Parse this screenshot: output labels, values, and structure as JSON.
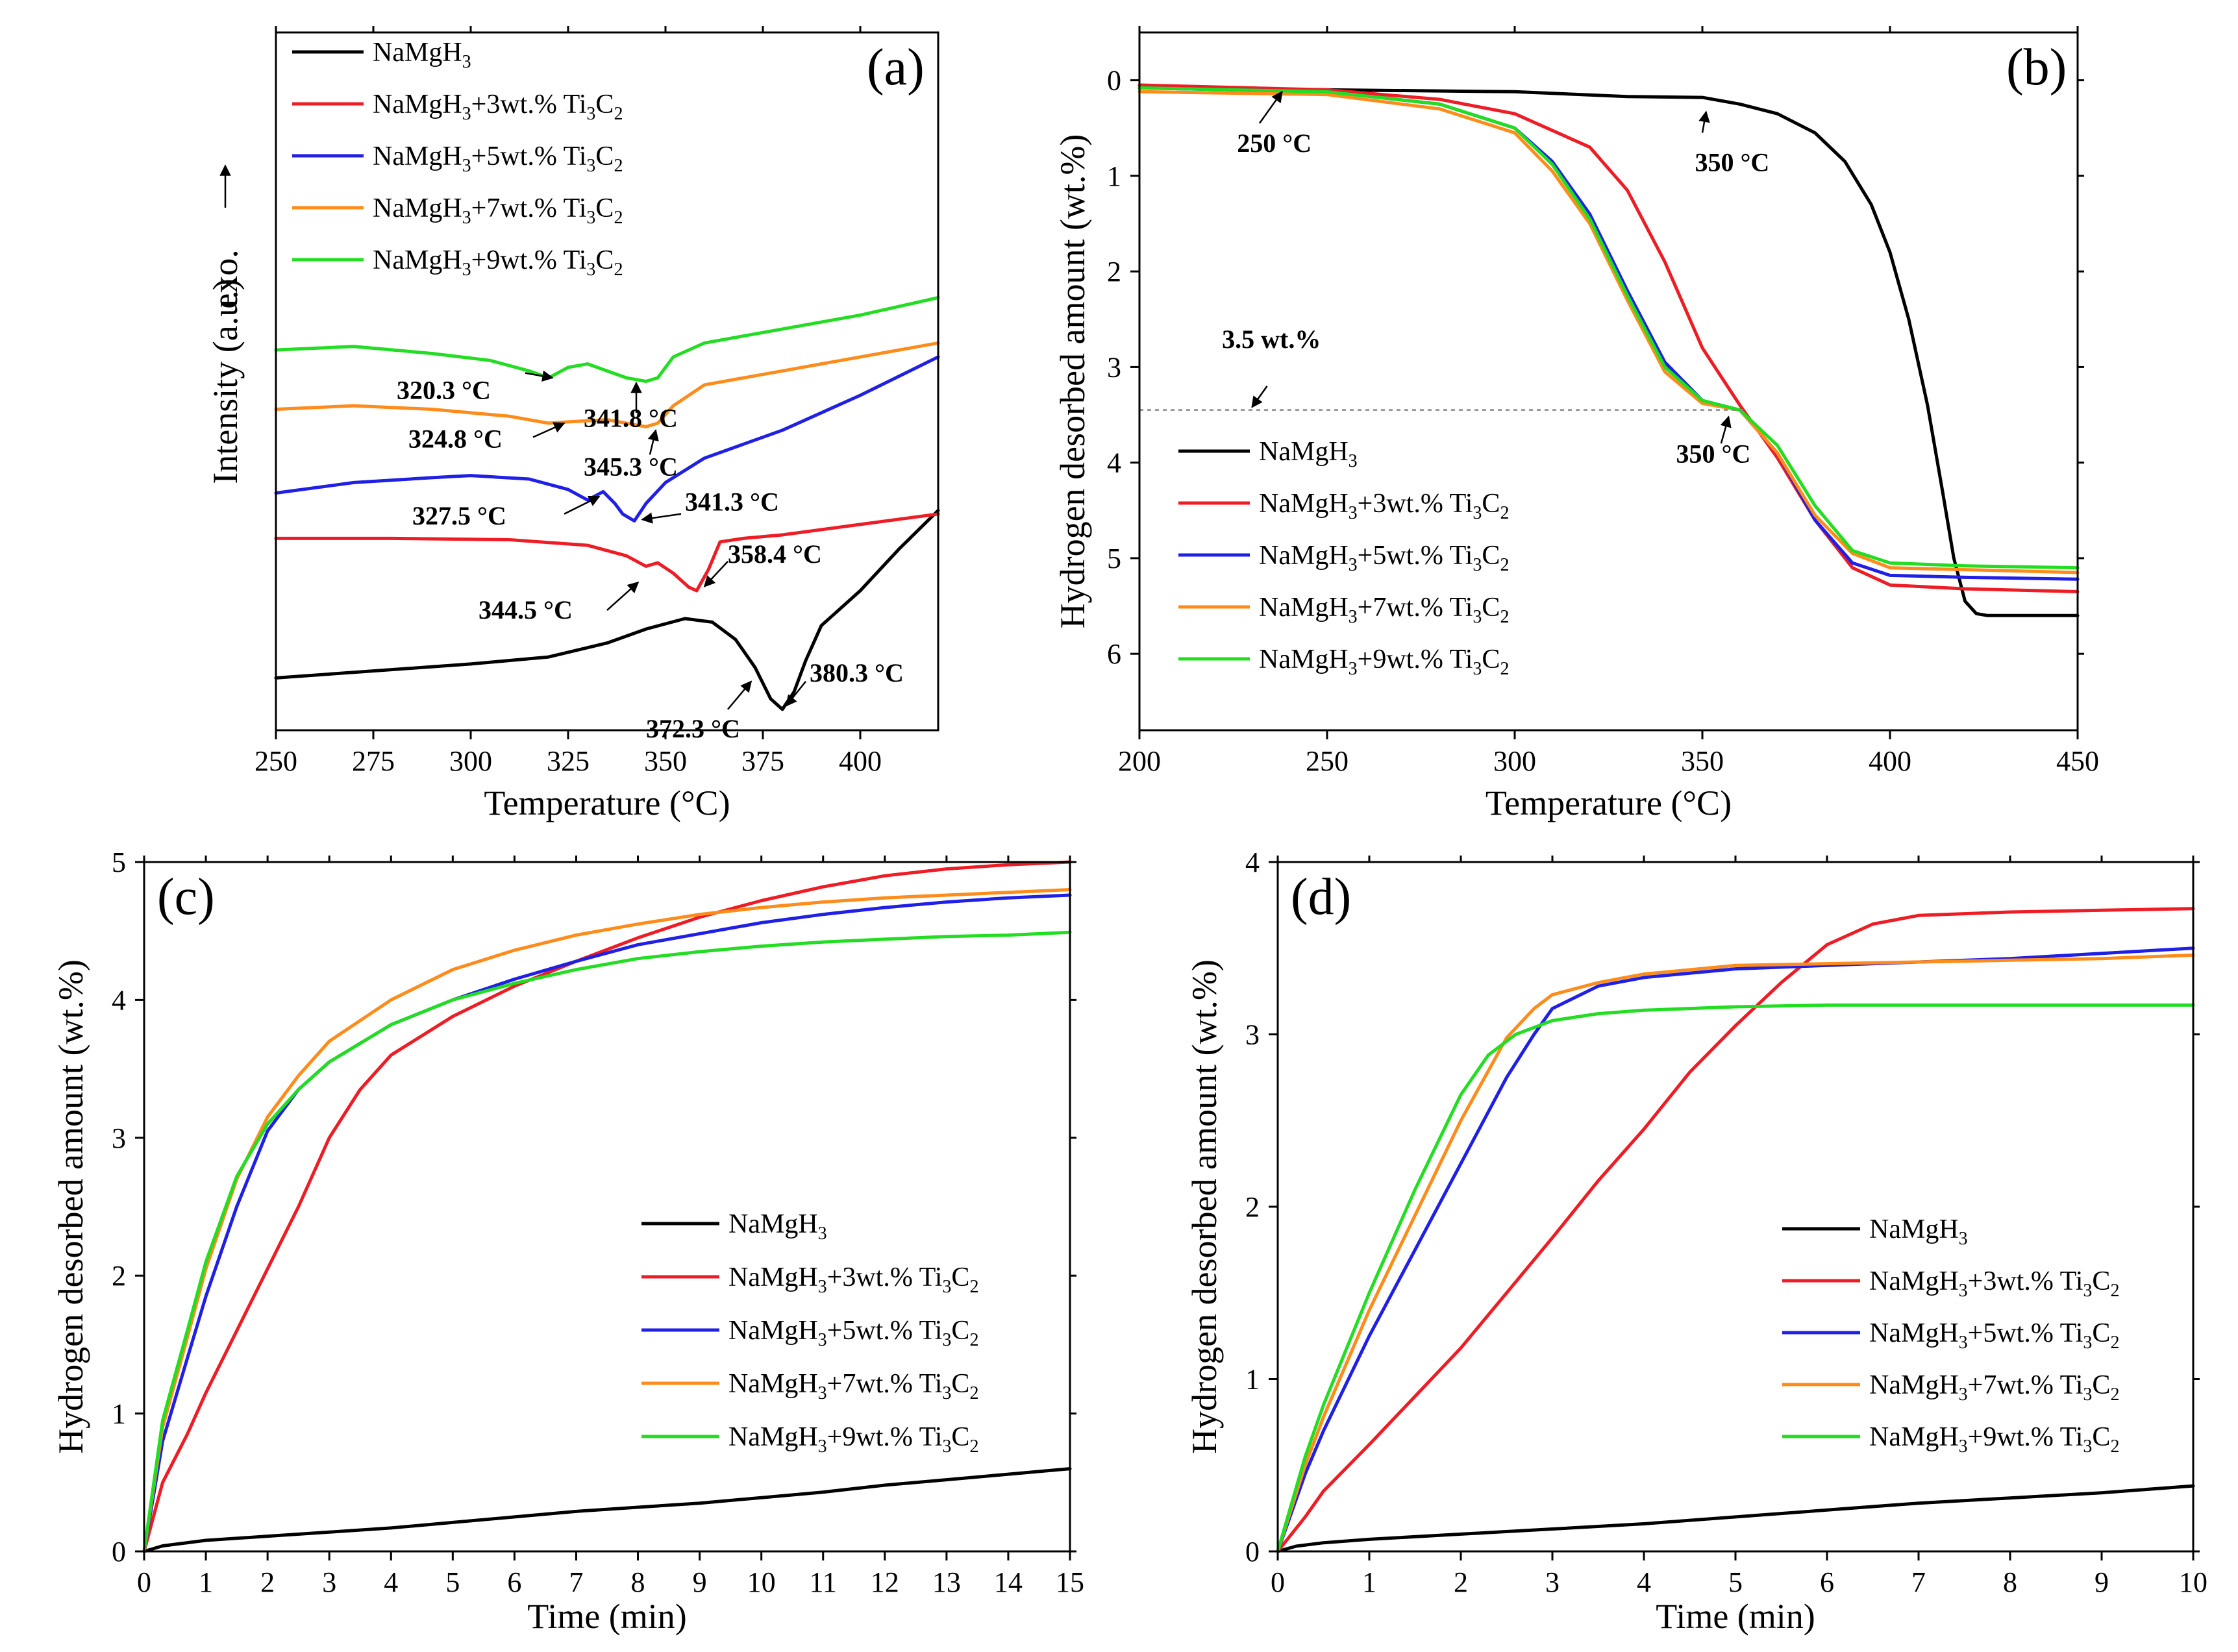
{
  "colors": {
    "NaMgH3": "#000000",
    "3wt": "#ee1c24",
    "5wt": "#1f1fe6",
    "7wt": "#ff8c1a",
    "9wt": "#22dd22"
  },
  "legend_entries": [
    {
      "key": "NaMgH3",
      "base": "NaMgH",
      "sub1": "3",
      "mid": "",
      "sub2": ""
    },
    {
      "key": "3wt",
      "base": "NaMgH",
      "sub1": "3",
      "mid": "+3wt.% Ti",
      "sub2": "3",
      "end": "C",
      "sub3": "2"
    },
    {
      "key": "5wt",
      "base": "NaMgH",
      "sub1": "3",
      "mid": "+5wt.% Ti",
      "sub2": "3",
      "end": "C",
      "sub3": "2"
    },
    {
      "key": "7wt",
      "base": "NaMgH",
      "sub1": "3",
      "mid": "+7wt.% Ti",
      "sub2": "3",
      "end": "C",
      "sub3": "2"
    },
    {
      "key": "9wt",
      "base": "NaMgH",
      "sub1": "3",
      "mid": "+9wt.% Ti",
      "sub2": "3",
      "end": "C",
      "sub3": "2"
    }
  ],
  "chart_data": [
    {
      "id": "a",
      "panel_label": "(a)",
      "type": "line",
      "title": "",
      "xlabel": "Temperature (°C)",
      "ylabel": "Intensity (a.u.)",
      "ylabel_extra": "exo.",
      "xlim": [
        250,
        420
      ],
      "ylim": [
        0,
        10
      ],
      "xticks": [
        250,
        275,
        300,
        325,
        350,
        375,
        400
      ],
      "yticks": [],
      "legend_position": "top-left",
      "series": [
        {
          "key": "NaMgH3",
          "x": [
            250,
            275,
            300,
            320,
            335,
            345,
            355,
            362,
            368,
            373,
            377,
            380,
            383,
            386,
            390,
            400,
            410,
            420
          ],
          "y": [
            0.75,
            0.85,
            0.95,
            1.05,
            1.25,
            1.45,
            1.6,
            1.55,
            1.3,
            0.9,
            0.45,
            0.3,
            0.55,
            1.0,
            1.5,
            2.0,
            2.6,
            3.15
          ]
        },
        {
          "key": "3wt",
          "x": [
            250,
            280,
            310,
            330,
            340,
            345,
            348,
            352,
            356,
            358,
            361,
            364,
            370,
            380,
            400,
            420
          ],
          "y": [
            2.75,
            2.75,
            2.73,
            2.65,
            2.5,
            2.35,
            2.4,
            2.25,
            2.05,
            2.0,
            2.3,
            2.7,
            2.75,
            2.8,
            2.95,
            3.1
          ]
        },
        {
          "key": "5wt",
          "x": [
            250,
            270,
            290,
            300,
            315,
            325,
            330,
            334,
            337,
            339,
            342,
            345,
            350,
            360,
            380,
            400,
            420
          ],
          "y": [
            3.4,
            3.55,
            3.62,
            3.65,
            3.6,
            3.45,
            3.3,
            3.42,
            3.25,
            3.1,
            3.0,
            3.25,
            3.55,
            3.9,
            4.3,
            4.8,
            5.35
          ]
        },
        {
          "key": "7wt",
          "x": [
            250,
            270,
            290,
            310,
            320,
            325,
            335,
            345,
            348,
            352,
            360,
            380,
            400,
            420
          ],
          "y": [
            4.6,
            4.65,
            4.6,
            4.5,
            4.4,
            4.42,
            4.45,
            4.35,
            4.4,
            4.65,
            4.95,
            5.15,
            5.35,
            5.55
          ]
        },
        {
          "key": "9wt",
          "x": [
            250,
            270,
            290,
            305,
            315,
            320,
            325,
            330,
            335,
            340,
            345,
            348,
            352,
            360,
            380,
            400,
            420
          ],
          "y": [
            5.45,
            5.5,
            5.4,
            5.3,
            5.15,
            5.05,
            5.2,
            5.25,
            5.15,
            5.05,
            5.0,
            5.05,
            5.35,
            5.55,
            5.75,
            5.95,
            6.2
          ]
        }
      ],
      "annotations": [
        {
          "text": "320.3 °C",
          "tx": 281,
          "ty": 4.75,
          "ax": 314,
          "ay": 5.12,
          "bx": 321,
          "by": 5.05
        },
        {
          "text": "341.8 °C",
          "tx": 329,
          "ty": 4.35,
          "ax": 342.5,
          "ay": 4.55,
          "bx": 342.5,
          "by": 4.98
        },
        {
          "text": "324.8 °C",
          "tx": 284,
          "ty": 4.05,
          "ax": 316,
          "ay": 4.2,
          "bx": 324,
          "by": 4.4
        },
        {
          "text": "345.3 °C",
          "tx": 329,
          "ty": 3.65,
          "ax": 346,
          "ay": 3.95,
          "bx": 347.5,
          "by": 4.3
        },
        {
          "text": "327.5 °C",
          "tx": 285,
          "ty": 2.95,
          "ax": 324,
          "ay": 3.1,
          "bx": 333,
          "by": 3.35
        },
        {
          "text": "341.3 °C",
          "tx": 355,
          "ty": 3.15,
          "ax": 354,
          "ay": 3.1,
          "bx": 344,
          "by": 3.02
        },
        {
          "text": "358.4 °C",
          "tx": 366,
          "ty": 2.4,
          "ax": 366,
          "ay": 2.42,
          "bx": 360,
          "by": 2.06
        },
        {
          "text": "344.5 °C",
          "tx": 302,
          "ty": 1.6,
          "ax": 335,
          "ay": 1.72,
          "bx": 343,
          "by": 2.12
        },
        {
          "text": "380.3 °C",
          "tx": 387,
          "ty": 0.7,
          "ax": 386,
          "ay": 0.7,
          "bx": 381,
          "by": 0.35
        },
        {
          "text": "372.3 °C",
          "tx": 345,
          "ty": -0.1,
          "ax": 366,
          "ay": 0.3,
          "bx": 372,
          "by": 0.7
        }
      ]
    },
    {
      "id": "b",
      "panel_label": "(b)",
      "type": "line",
      "title": "",
      "xlabel": "Temperature (°C)",
      "ylabel": "Hydrogen desorbed amount (wt.%)",
      "xlim": [
        200,
        450
      ],
      "ylim": [
        6.8,
        -0.5
      ],
      "xticks": [
        200,
        250,
        300,
        350,
        400,
        450
      ],
      "yticks": [
        0,
        1,
        2,
        3,
        4,
        5,
        6
      ],
      "legend_position": "bottom-left",
      "reference_line": {
        "y": 3.45,
        "x0": 200,
        "x1": 362,
        "label": "3.5 wt.%"
      },
      "series": [
        {
          "key": "NaMgH3",
          "x": [
            200,
            250,
            300,
            330,
            350,
            360,
            370,
            380,
            388,
            395,
            400,
            405,
            410,
            414,
            417,
            420,
            423,
            426,
            430,
            450
          ],
          "y": [
            0.08,
            0.1,
            0.12,
            0.17,
            0.18,
            0.25,
            0.35,
            0.55,
            0.85,
            1.3,
            1.8,
            2.5,
            3.4,
            4.3,
            5.0,
            5.45,
            5.58,
            5.6,
            5.6,
            5.6
          ]
        },
        {
          "key": "3wt",
          "x": [
            200,
            250,
            280,
            300,
            320,
            330,
            340,
            350,
            360,
            370,
            380,
            390,
            400,
            420,
            450
          ],
          "y": [
            0.05,
            0.1,
            0.2,
            0.35,
            0.7,
            1.15,
            1.9,
            2.8,
            3.4,
            3.95,
            4.6,
            5.1,
            5.28,
            5.32,
            5.35
          ]
        },
        {
          "key": "5wt",
          "x": [
            200,
            250,
            280,
            300,
            310,
            320,
            330,
            340,
            350,
            360,
            370,
            380,
            390,
            400,
            420,
            450
          ],
          "y": [
            0.08,
            0.12,
            0.25,
            0.5,
            0.85,
            1.4,
            2.2,
            2.95,
            3.35,
            3.45,
            3.9,
            4.6,
            5.05,
            5.18,
            5.2,
            5.22
          ]
        },
        {
          "key": "7wt",
          "x": [
            200,
            250,
            280,
            300,
            310,
            320,
            330,
            340,
            350,
            360,
            370,
            380,
            390,
            400,
            420,
            450
          ],
          "y": [
            0.12,
            0.15,
            0.3,
            0.55,
            0.95,
            1.5,
            2.3,
            3.05,
            3.38,
            3.45,
            3.9,
            4.55,
            4.95,
            5.1,
            5.12,
            5.15
          ]
        },
        {
          "key": "9wt",
          "x": [
            200,
            250,
            280,
            300,
            310,
            320,
            330,
            340,
            350,
            360,
            370,
            380,
            390,
            400,
            420,
            450
          ],
          "y": [
            0.08,
            0.12,
            0.25,
            0.5,
            0.88,
            1.45,
            2.25,
            3.0,
            3.35,
            3.45,
            3.82,
            4.45,
            4.92,
            5.05,
            5.08,
            5.1
          ]
        }
      ],
      "annotations": [
        {
          "text": "250 °C",
          "tx": 226,
          "ty": 0.75,
          "ax": 232,
          "ay": 0.45,
          "bx": 238,
          "by": 0.12
        },
        {
          "text": "350 °C",
          "tx": 348,
          "ty": 0.95,
          "ax": 350,
          "ay": 0.55,
          "bx": 351,
          "by": 0.33
        },
        {
          "text": "350 °C",
          "tx": 343,
          "ty": 4.0,
          "ax": 355,
          "ay": 3.8,
          "bx": 357,
          "by": 3.52
        },
        {
          "text": "3.5 wt.%",
          "tx": 222,
          "ty": 2.8,
          "ax": 234,
          "ay": 3.2,
          "bx": 230,
          "by": 3.42
        }
      ]
    },
    {
      "id": "c",
      "panel_label": "(c)",
      "type": "line",
      "title": "",
      "xlabel": "Time (min)",
      "ylabel": "Hydrogen desorbed amount (wt.%)",
      "xlim": [
        0,
        15
      ],
      "ylim": [
        0,
        5
      ],
      "xticks": [
        0,
        1,
        2,
        3,
        4,
        5,
        6,
        7,
        8,
        9,
        10,
        11,
        12,
        13,
        14,
        15
      ],
      "yticks": [
        0,
        1,
        2,
        3,
        4,
        5
      ],
      "legend_position": "center-right",
      "series": [
        {
          "key": "NaMgH3",
          "x": [
            0,
            0.3,
            1,
            2,
            3,
            4,
            5,
            6,
            7,
            8,
            9,
            10,
            11,
            12,
            13,
            14,
            15
          ],
          "y": [
            0,
            0.04,
            0.08,
            0.11,
            0.14,
            0.17,
            0.21,
            0.25,
            0.29,
            0.32,
            0.35,
            0.39,
            0.43,
            0.48,
            0.52,
            0.56,
            0.6
          ]
        },
        {
          "key": "3wt",
          "x": [
            0,
            0.3,
            0.7,
            1,
            1.5,
            2,
            2.5,
            3,
            3.5,
            4,
            5,
            6,
            7,
            8,
            9,
            10,
            11,
            12,
            13,
            14,
            15
          ],
          "y": [
            0,
            0.5,
            0.85,
            1.15,
            1.6,
            2.05,
            2.5,
            3.0,
            3.35,
            3.6,
            3.88,
            4.1,
            4.28,
            4.45,
            4.6,
            4.72,
            4.82,
            4.9,
            4.95,
            4.98,
            5.0
          ]
        },
        {
          "key": "5wt",
          "x": [
            0,
            0.3,
            0.7,
            1,
            1.5,
            2,
            2.5,
            3,
            4,
            5,
            6,
            7,
            8,
            9,
            10,
            11,
            12,
            13,
            14,
            15
          ],
          "y": [
            0,
            0.8,
            1.4,
            1.85,
            2.5,
            3.05,
            3.35,
            3.55,
            3.82,
            4.0,
            4.15,
            4.28,
            4.4,
            4.48,
            4.56,
            4.62,
            4.67,
            4.71,
            4.74,
            4.76
          ]
        },
        {
          "key": "7wt",
          "x": [
            0,
            0.3,
            0.7,
            1,
            1.5,
            2,
            2.5,
            3,
            4,
            5,
            6,
            7,
            8,
            9,
            10,
            11,
            12,
            13,
            14,
            15
          ],
          "y": [
            0,
            0.9,
            1.55,
            2.05,
            2.7,
            3.15,
            3.45,
            3.7,
            4.0,
            4.22,
            4.36,
            4.47,
            4.55,
            4.62,
            4.67,
            4.71,
            4.74,
            4.76,
            4.78,
            4.8
          ]
        },
        {
          "key": "9wt",
          "x": [
            0,
            0.3,
            0.7,
            1,
            1.5,
            2,
            2.5,
            3,
            4,
            5,
            6,
            7,
            8,
            9,
            10,
            11,
            12,
            13,
            14,
            15
          ],
          "y": [
            0,
            0.95,
            1.6,
            2.1,
            2.72,
            3.1,
            3.35,
            3.55,
            3.82,
            4.0,
            4.12,
            4.22,
            4.3,
            4.35,
            4.39,
            4.42,
            4.44,
            4.46,
            4.47,
            4.49
          ]
        }
      ]
    },
    {
      "id": "d",
      "panel_label": "(d)",
      "type": "line",
      "title": "",
      "xlabel": "Time (min)",
      "ylabel": "Hydrogen desorbed amount (wt.%)",
      "xlim": [
        0,
        10
      ],
      "ylim": [
        0,
        4
      ],
      "xticks": [
        0,
        1,
        2,
        3,
        4,
        5,
        6,
        7,
        8,
        9,
        10
      ],
      "yticks": [
        0,
        1,
        2,
        3,
        4
      ],
      "legend_position": "bottom-right",
      "series": [
        {
          "key": "NaMgH3",
          "x": [
            0,
            0.2,
            0.5,
            1,
            2,
            3,
            4,
            5,
            6,
            7,
            8,
            9,
            10
          ],
          "y": [
            0,
            0.03,
            0.05,
            0.07,
            0.1,
            0.13,
            0.16,
            0.2,
            0.24,
            0.28,
            0.31,
            0.34,
            0.38
          ]
        },
        {
          "key": "3wt",
          "x": [
            0,
            0.3,
            0.5,
            1,
            1.5,
            2,
            2.5,
            3,
            3.5,
            4,
            4.5,
            5,
            5.5,
            6,
            6.5,
            7,
            8,
            9,
            10
          ],
          "y": [
            0,
            0.2,
            0.35,
            0.62,
            0.9,
            1.18,
            1.5,
            1.82,
            2.15,
            2.45,
            2.78,
            3.05,
            3.3,
            3.52,
            3.64,
            3.69,
            3.71,
            3.72,
            3.73
          ]
        },
        {
          "key": "5wt",
          "x": [
            0,
            0.3,
            0.5,
            1,
            1.5,
            2,
            2.5,
            2.8,
            3,
            3.5,
            4,
            5,
            6,
            7,
            8,
            9,
            10
          ],
          "y": [
            0,
            0.45,
            0.7,
            1.25,
            1.75,
            2.25,
            2.75,
            3.0,
            3.15,
            3.28,
            3.33,
            3.38,
            3.4,
            3.42,
            3.44,
            3.47,
            3.5
          ]
        },
        {
          "key": "7wt",
          "x": [
            0,
            0.3,
            0.5,
            1,
            1.5,
            2,
            2.5,
            2.8,
            3,
            3.5,
            4,
            5,
            6,
            7,
            8,
            9,
            10
          ],
          "y": [
            0,
            0.5,
            0.78,
            1.4,
            1.95,
            2.5,
            2.98,
            3.15,
            3.23,
            3.3,
            3.35,
            3.4,
            3.41,
            3.42,
            3.43,
            3.44,
            3.46
          ]
        },
        {
          "key": "9wt",
          "x": [
            0,
            0.3,
            0.5,
            1,
            1.5,
            2,
            2.3,
            2.6,
            3,
            3.5,
            4,
            5,
            6,
            7,
            8,
            9,
            10
          ],
          "y": [
            0,
            0.55,
            0.85,
            1.5,
            2.1,
            2.65,
            2.88,
            3.0,
            3.08,
            3.12,
            3.14,
            3.16,
            3.17,
            3.17,
            3.17,
            3.17,
            3.17
          ]
        }
      ]
    }
  ]
}
